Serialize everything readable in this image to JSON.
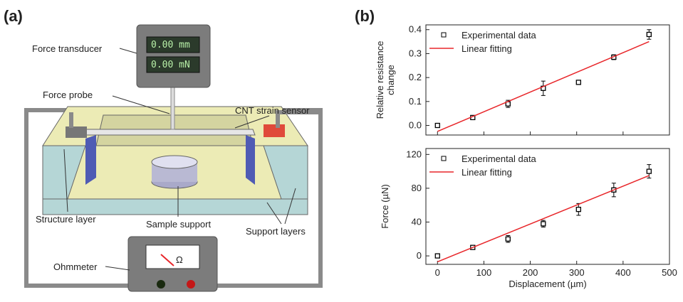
{
  "panel_a": {
    "label": "(a)",
    "labels": {
      "force_transducer": "Force transducer",
      "display_mm": "0.00 mm",
      "display_mn": "0.00 mN",
      "force_probe": "Force probe",
      "cnt_sensor": "CNT strain sensor",
      "structure_layer": "Structure layer",
      "sample_support": "Sample support",
      "support_layers": "Support layers",
      "ohmmeter": "Ohmmeter",
      "ohm_symbol": "Ω"
    }
  },
  "panel_b": {
    "label": "(b)"
  },
  "chart_data": [
    {
      "type": "scatter",
      "ylabel": [
        "Relative resistance",
        "change"
      ],
      "x": [
        0,
        76,
        152,
        228,
        304,
        380,
        456
      ],
      "xlim": [
        -25,
        500
      ],
      "xticks": [
        0,
        100,
        200,
        300,
        400,
        500
      ],
      "show_xtick_labels": false,
      "ylim": [
        -0.04,
        0.42
      ],
      "yticks": [
        {
          "value": 0,
          "label": "0.0"
        },
        0.1,
        0.2,
        0.3,
        0.4
      ],
      "legend": "upper left",
      "series": [
        {
          "name": "Experimental data",
          "color": "#000000",
          "values": [
            0,
            0.033,
            0.09,
            0.155,
            0.18,
            0.285,
            0.38
          ],
          "errors": [
            0.004,
            0.007,
            0.015,
            0.03,
            0.008,
            0.01,
            0.02
          ]
        },
        {
          "name": "Linear fitting",
          "color": "#e8262a",
          "x": [
            0,
            456
          ],
          "values": [
            -0.025,
            0.35
          ]
        }
      ]
    },
    {
      "type": "scatter",
      "ylabel": [
        "Force (µN)"
      ],
      "xlabel": "Displacement (µm)",
      "x": [
        0,
        76,
        152,
        228,
        304,
        380,
        456
      ],
      "xlim": [
        -25,
        500
      ],
      "xticks": [
        0,
        100,
        200,
        300,
        400,
        500
      ],
      "show_xtick_labels": true,
      "ylim": [
        -10,
        127
      ],
      "yticks": [
        0,
        40,
        80,
        120
      ],
      "legend": "upper left",
      "series": [
        {
          "name": "Experimental data",
          "color": "#000000",
          "values": [
            0,
            10,
            20,
            38,
            55,
            78,
            100
          ],
          "errors": [
            1,
            1.5,
            4,
            4,
            7,
            8,
            8
          ]
        },
        {
          "name": "Linear fitting",
          "color": "#e8262a",
          "x": [
            0,
            456
          ],
          "values": [
            -7,
            95
          ]
        }
      ]
    }
  ]
}
